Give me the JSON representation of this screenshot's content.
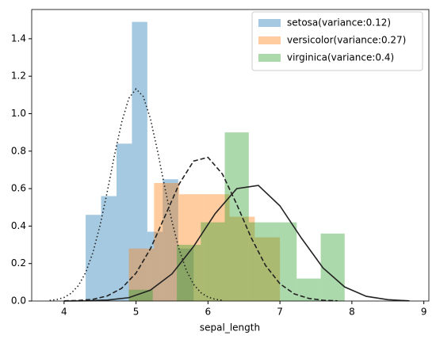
{
  "chart_data": {
    "type": "histogram",
    "xlabel": "sepal_length",
    "xlim": [
      3.55,
      9.07
    ],
    "ylim": [
      0,
      1.556
    ],
    "xticks": [
      4,
      5,
      6,
      7,
      8,
      9
    ],
    "yticks": [
      {
        "value": 0,
        "label": "0.0"
      },
      {
        "value": 0.2,
        "label": "0.2"
      },
      {
        "value": 0.4,
        "label": "0.4"
      },
      {
        "value": 0.6,
        "label": "0.6"
      },
      {
        "value": 0.8,
        "label": "0.8"
      },
      {
        "value": 1.0,
        "label": "1.0"
      },
      {
        "value": 1.2,
        "label": "1.2"
      },
      {
        "value": 1.4,
        "label": "1.4"
      }
    ],
    "legend": "upper right",
    "opacity": 0.4,
    "series": [
      {
        "name": "setosa(variance:0.12)",
        "color": "#1f77b4",
        "bins": [
          4.3,
          4.514,
          4.729,
          4.943,
          5.157,
          5.371,
          5.586,
          5.8
        ],
        "values": [
          0.46,
          0.56,
          0.84,
          1.49,
          0.37,
          0.65,
          0.28
        ]
      },
      {
        "name": "versicolor(variance:0.27)",
        "color": "#ff7f0e",
        "bins": [
          4.9,
          5.25,
          5.6,
          5.95,
          6.3,
          6.65,
          7.0
        ],
        "values": [
          0.28,
          0.63,
          0.57,
          0.57,
          0.45,
          0.34
        ]
      },
      {
        "name": "virginica(variance:0.4)",
        "color": "#2ca02c",
        "bins": [
          4.9,
          5.233,
          5.567,
          5.9,
          6.233,
          6.567,
          6.9,
          7.233,
          7.567,
          7.9
        ],
        "values": [
          0.06,
          0.0,
          0.3,
          0.42,
          0.9,
          0.42,
          0.42,
          0.12,
          0.36
        ]
      }
    ],
    "curves": [
      {
        "color": "#222222",
        "linestyle": "dotted",
        "x": [
          3.8,
          3.9,
          4.0,
          4.1,
          4.2,
          4.3,
          4.4,
          4.5,
          4.6,
          4.7,
          4.8,
          4.9,
          5.0,
          5.1,
          5.2,
          5.3,
          5.4,
          5.5,
          5.6,
          5.7,
          5.8,
          5.9,
          6.0,
          6.1,
          6.2
        ],
        "values": [
          0.003,
          0.008,
          0.019,
          0.042,
          0.083,
          0.152,
          0.258,
          0.404,
          0.583,
          0.777,
          0.954,
          1.082,
          1.132,
          1.092,
          0.973,
          0.799,
          0.606,
          0.424,
          0.274,
          0.163,
          0.089,
          0.045,
          0.021,
          0.009,
          0.004
        ]
      },
      {
        "color": "#222222",
        "linestyle": "dashed",
        "x": [
          4.0,
          4.2,
          4.4,
          4.6,
          4.8,
          5.0,
          5.2,
          5.4,
          5.6,
          5.8,
          6.0,
          6.2,
          6.4,
          6.6,
          6.8,
          7.0,
          7.2,
          7.4,
          7.6,
          7.8
        ],
        "values": [
          0.001,
          0.003,
          0.009,
          0.027,
          0.068,
          0.149,
          0.279,
          0.451,
          0.625,
          0.747,
          0.767,
          0.678,
          0.516,
          0.338,
          0.19,
          0.092,
          0.038,
          0.014,
          0.004,
          0.001
        ]
      },
      {
        "color": "#222222",
        "linestyle": "solid",
        "x": [
          4.0,
          4.3,
          4.6,
          4.9,
          5.2,
          5.5,
          5.8,
          6.1,
          6.4,
          6.7,
          7.0,
          7.3,
          7.6,
          7.9,
          8.2,
          8.5,
          8.8
        ],
        "values": [
          0.0,
          0.001,
          0.005,
          0.018,
          0.058,
          0.145,
          0.291,
          0.467,
          0.6,
          0.617,
          0.508,
          0.335,
          0.176,
          0.075,
          0.025,
          0.007,
          0.001
        ]
      }
    ]
  }
}
